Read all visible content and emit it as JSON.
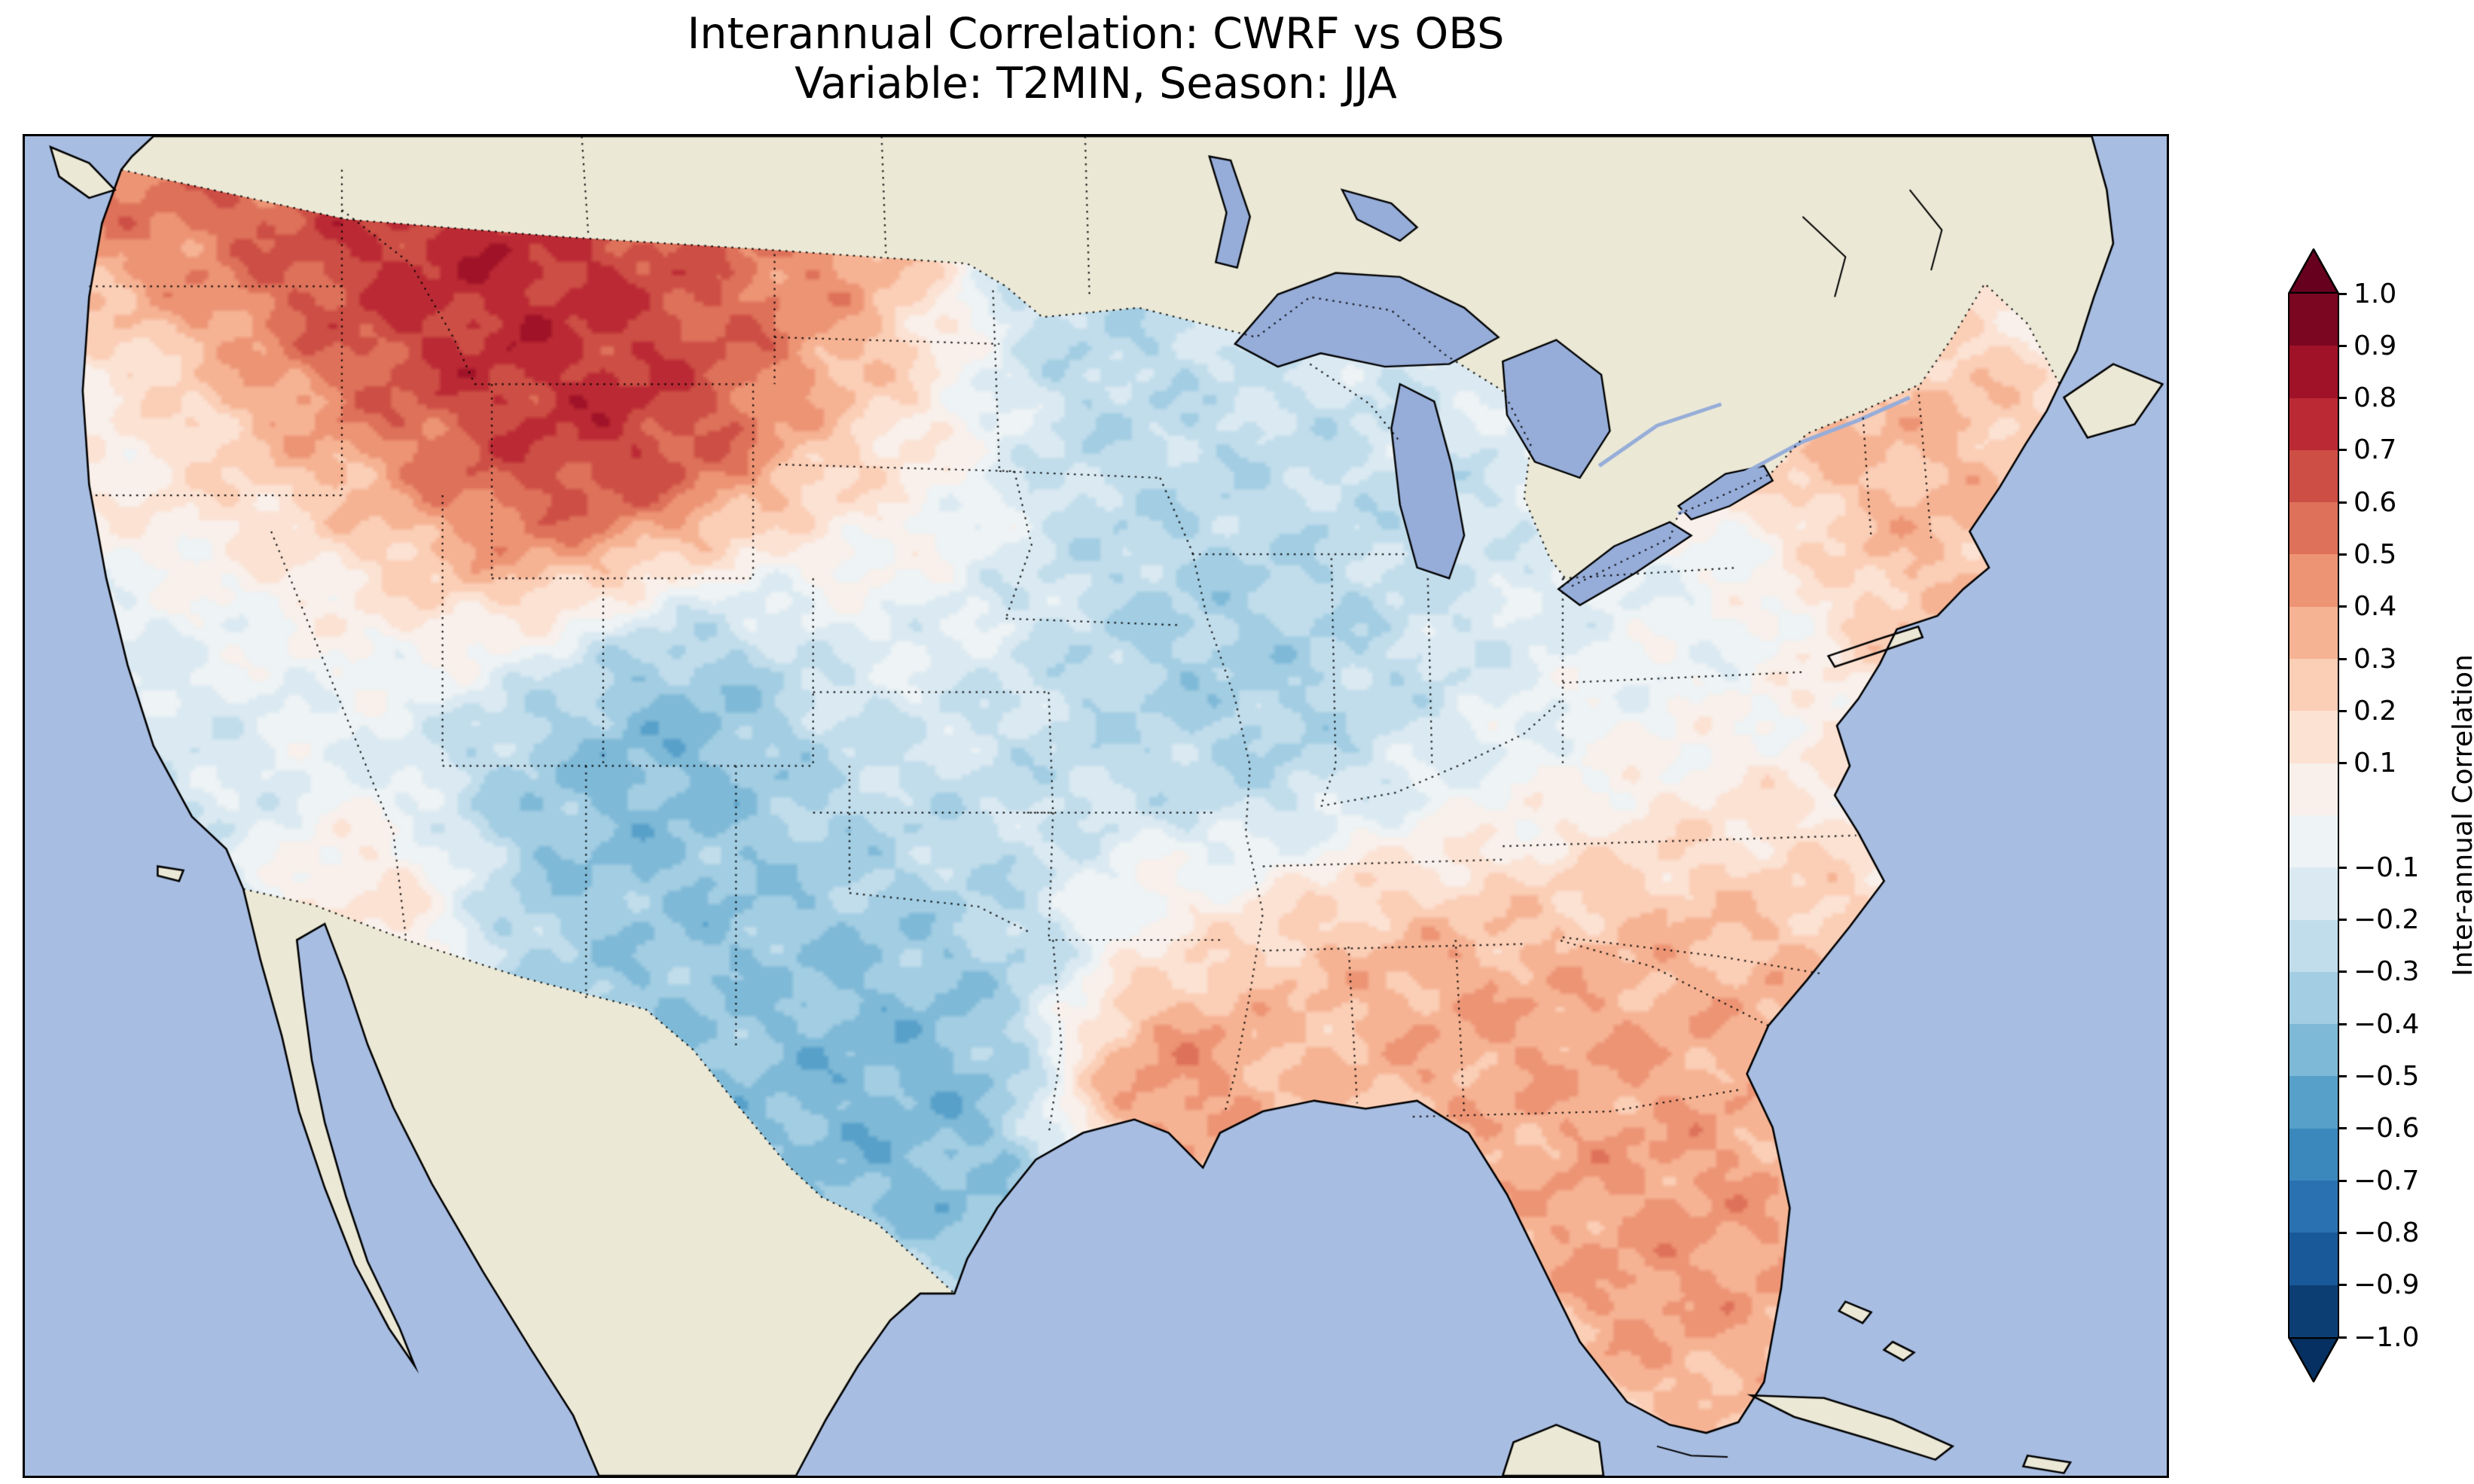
{
  "figure": {
    "title_line1": "Interannual Correlation: CWRF vs OBS",
    "title_line2": "Variable: T2MIN, Season: JJA",
    "background": "#ffffff"
  },
  "map": {
    "ocean_color": "#a8bde2",
    "land_color": "#ebe9d6",
    "lake_color": "#96add9",
    "coastline_color": "#000000",
    "border_linestyle": "dotted"
  },
  "colorbar": {
    "label": "Inter-annual Correlation",
    "ticks": [
      "1.0",
      "0.9",
      "0.8",
      "0.7",
      "0.6",
      "0.5",
      "0.4",
      "0.3",
      "0.2",
      "0.1",
      "−0.1",
      "−0.2",
      "−0.3",
      "−0.4",
      "−0.5",
      "−0.6",
      "−0.7",
      "−0.8",
      "−0.9",
      "−1.0"
    ],
    "band_colors": [
      "#7a0622",
      "#9f1228",
      "#bb2a34",
      "#cd4e45",
      "#de715a",
      "#ed9475",
      "#f6b393",
      "#fbceb6",
      "#fce2d3",
      "#f9f0eb",
      "#eef3f5",
      "#dbeaf2",
      "#c1ddec",
      "#a2cde3",
      "#7eb9d7",
      "#57a0ca",
      "#3b88bd",
      "#2a71b2",
      "#1a5999",
      "#0c3e74"
    ],
    "extend_over_color": "#67001f",
    "extend_under_color": "#053061"
  },
  "chart_data": {
    "type": "heatmap",
    "title": "Interannual Correlation: CWRF vs OBS",
    "subtitle": "Variable: T2MIN, Season: JJA",
    "comparison": "CWRF vs OBS",
    "variable": "T2MIN",
    "season": "JJA",
    "value_label": "Inter-annual Correlation",
    "value_range": [
      -1.0,
      1.0
    ],
    "contour_interval": 0.1,
    "domain": "Contiguous United States",
    "field_base_value": 0.02,
    "field_base_weight": 0.2,
    "noise_amplitudes": [
      0.085,
      0.05
    ],
    "regions": [
      {
        "name": "pacific-northwest-interior",
        "center": [
          0.16,
          0.16
        ],
        "sigma": 0.1,
        "value": 0.8
      },
      {
        "name": "idaho-montana-core",
        "center": [
          0.21,
          0.12
        ],
        "sigma": 0.05,
        "value": 0.9
      },
      {
        "name": "wyoming-core",
        "center": [
          0.27,
          0.25
        ],
        "sigma": 0.055,
        "value": 0.9
      },
      {
        "name": "eastern-montana",
        "center": [
          0.32,
          0.11
        ],
        "sigma": 0.05,
        "value": 0.6
      },
      {
        "name": "washington-coast",
        "center": [
          0.055,
          0.06
        ],
        "sigma": 0.035,
        "value": 0.55
      },
      {
        "name": "oregon-coast",
        "center": [
          0.04,
          0.19
        ],
        "sigma": 0.04,
        "value": -0.15
      },
      {
        "name": "north-dakota",
        "center": [
          0.385,
          0.12
        ],
        "sigma": 0.035,
        "value": 0.45
      },
      {
        "name": "south-dakota",
        "center": [
          0.41,
          0.21
        ],
        "sigma": 0.035,
        "value": 0.25
      },
      {
        "name": "western-colorado-minimum",
        "center": [
          0.303,
          0.4
        ],
        "sigma": 0.042,
        "value": -0.85
      },
      {
        "name": "southwest-utah",
        "center": [
          0.235,
          0.465
        ],
        "sigma": 0.045,
        "value": -0.5
      },
      {
        "name": "eastern-new-mexico",
        "center": [
          0.315,
          0.55
        ],
        "sigma": 0.05,
        "value": -0.45
      },
      {
        "name": "nevada-great-basin",
        "center": [
          0.13,
          0.34
        ],
        "sigma": 0.07,
        "value": -0.25
      },
      {
        "name": "california-coast",
        "center": [
          0.05,
          0.44
        ],
        "sigma": 0.055,
        "value": -0.3
      },
      {
        "name": "southern-arizona",
        "center": [
          0.165,
          0.555
        ],
        "sigma": 0.028,
        "value": 0.25
      },
      {
        "name": "texas",
        "center": [
          0.385,
          0.63
        ],
        "sigma": 0.085,
        "value": -0.45
      },
      {
        "name": "south-texas",
        "center": [
          0.405,
          0.72
        ],
        "sigma": 0.045,
        "value": -0.55
      },
      {
        "name": "kansas-oklahoma",
        "center": [
          0.41,
          0.45
        ],
        "sigma": 0.06,
        "value": -0.18
      },
      {
        "name": "minnesota",
        "center": [
          0.47,
          0.16
        ],
        "sigma": 0.045,
        "value": -0.35
      },
      {
        "name": "wisconsin-iowa",
        "center": [
          0.52,
          0.3
        ],
        "sigma": 0.055,
        "value": -0.3
      },
      {
        "name": "illinois",
        "center": [
          0.555,
          0.4
        ],
        "sigma": 0.045,
        "value": -0.45
      },
      {
        "name": "indiana",
        "center": [
          0.605,
          0.42
        ],
        "sigma": 0.045,
        "value": -0.35
      },
      {
        "name": "lake-michigan-region",
        "center": [
          0.625,
          0.27
        ],
        "sigma": 0.045,
        "value": -0.25
      },
      {
        "name": "ohio-valley",
        "center": [
          0.67,
          0.42
        ],
        "sigma": 0.05,
        "value": -0.15
      },
      {
        "name": "missouri",
        "center": [
          0.5,
          0.48
        ],
        "sigma": 0.05,
        "value": -0.22
      },
      {
        "name": "louisiana-gulf-maximum",
        "center": [
          0.525,
          0.695
        ],
        "sigma": 0.032,
        "value": 0.75
      },
      {
        "name": "mississippi-alabama",
        "center": [
          0.6,
          0.63
        ],
        "sigma": 0.045,
        "value": 0.35
      },
      {
        "name": "georgia",
        "center": [
          0.69,
          0.62
        ],
        "sigma": 0.05,
        "value": 0.5
      },
      {
        "name": "florida",
        "center": [
          0.77,
          0.82
        ],
        "sigma": 0.05,
        "value": 0.5
      },
      {
        "name": "carolinas",
        "center": [
          0.755,
          0.565
        ],
        "sigma": 0.045,
        "value": 0.35
      },
      {
        "name": "southeast-coast",
        "center": [
          0.8,
          0.62
        ],
        "sigma": 0.04,
        "value": 0.4
      },
      {
        "name": "northeast",
        "center": [
          0.86,
          0.27
        ],
        "sigma": 0.05,
        "value": 0.4
      },
      {
        "name": "upstate-new-york",
        "center": [
          0.795,
          0.33
        ],
        "sigma": 0.035,
        "value": -0.15
      },
      {
        "name": "mid-atlantic",
        "center": [
          0.78,
          0.46
        ],
        "sigma": 0.04,
        "value": -0.05
      },
      {
        "name": "appalachia",
        "center": [
          0.71,
          0.5
        ],
        "sigma": 0.04,
        "value": -0.12
      },
      {
        "name": "arkansas",
        "center": [
          0.52,
          0.56
        ],
        "sigma": 0.025,
        "value": 0.2
      },
      {
        "name": "nebraska",
        "center": [
          0.4,
          0.33
        ],
        "sigma": 0.05,
        "value": 0.05
      },
      {
        "name": "chesapeake",
        "center": [
          0.82,
          0.52
        ],
        "sigma": 0.03,
        "value": 0.15
      }
    ]
  }
}
